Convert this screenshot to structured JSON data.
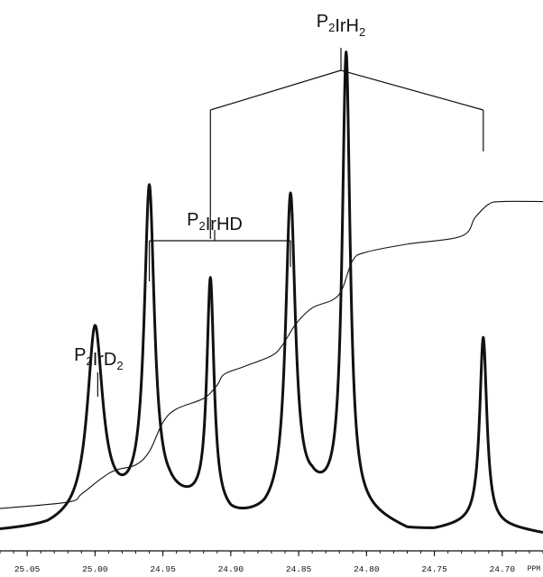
{
  "chart_data": {
    "type": "line",
    "title": "",
    "xlabel": "",
    "ylabel": "",
    "x_unit": "PPM",
    "x_reversed": true,
    "xlim": [
      25.07,
      24.67
    ],
    "ylim": [
      0,
      1
    ],
    "grid": false,
    "legend": "none",
    "x_ticks": [
      25.05,
      25.0,
      24.95,
      24.9,
      24.85,
      24.8,
      24.75,
      24.7
    ],
    "x_tick_labels": [
      "25.05",
      "25.00",
      "24.95",
      "24.90",
      "24.85",
      "24.80",
      "24.75",
      "24.70"
    ],
    "series": [
      {
        "role": "spectrum",
        "color": "#111111",
        "baseline": 0.035,
        "background": [
          [
            25.07,
            0.035
          ],
          [
            25.035,
            0.04
          ],
          [
            24.99,
            0.07
          ],
          [
            24.945,
            0.09
          ],
          [
            24.925,
            0.08
          ],
          [
            24.9,
            0.055
          ],
          [
            24.875,
            0.06
          ],
          [
            24.84,
            0.1
          ],
          [
            24.8,
            0.065
          ],
          [
            24.77,
            0.035
          ],
          [
            24.75,
            0.035
          ],
          [
            24.72,
            0.05
          ],
          [
            24.67,
            0.03
          ]
        ],
        "peaks": [
          {
            "x": 25.0,
            "height": 0.35,
            "width": 0.0068
          },
          {
            "x": 24.96,
            "height": 0.59,
            "width": 0.0045
          },
          {
            "x": 24.915,
            "height": 0.43,
            "width": 0.0032
          },
          {
            "x": 24.856,
            "height": 0.58,
            "width": 0.0043
          },
          {
            "x": 24.815,
            "height": 0.85,
            "width": 0.0035
          },
          {
            "x": 24.714,
            "height": 0.35,
            "width": 0.0032
          }
        ]
      },
      {
        "role": "integral",
        "color": "#111111",
        "points": [
          [
            25.07,
            0.078
          ],
          [
            25.02,
            0.09
          ],
          [
            25.01,
            0.105
          ],
          [
            24.995,
            0.135
          ],
          [
            24.985,
            0.15
          ],
          [
            24.97,
            0.16
          ],
          [
            24.96,
            0.185
          ],
          [
            24.95,
            0.24
          ],
          [
            24.94,
            0.265
          ],
          [
            24.92,
            0.285
          ],
          [
            24.91,
            0.31
          ],
          [
            24.905,
            0.33
          ],
          [
            24.89,
            0.345
          ],
          [
            24.87,
            0.365
          ],
          [
            24.862,
            0.385
          ],
          [
            24.852,
            0.425
          ],
          [
            24.84,
            0.455
          ],
          [
            24.825,
            0.47
          ],
          [
            24.818,
            0.49
          ],
          [
            24.81,
            0.545
          ],
          [
            24.8,
            0.56
          ],
          [
            24.77,
            0.575
          ],
          [
            24.73,
            0.59
          ],
          [
            24.72,
            0.625
          ],
          [
            24.71,
            0.65
          ],
          [
            24.7,
            0.655
          ],
          [
            24.67,
            0.655
          ]
        ]
      }
    ],
    "annotations": [
      {
        "name": "P2IrD2",
        "parts": [
          {
            "t": "P",
            "sub": false
          },
          {
            "t": "2",
            "sub": true
          },
          {
            "t": "IrD",
            "sub": false
          },
          {
            "t": "2",
            "sub": true
          }
        ],
        "lines": [
          24.998
        ]
      },
      {
        "name": "P2IrHD",
        "parts": [
          {
            "t": "P",
            "sub": false
          },
          {
            "t": "2",
            "sub": true
          },
          {
            "t": "IrHD",
            "sub": false
          }
        ],
        "lines": [
          24.96,
          24.856
        ]
      },
      {
        "name": "P2IrH2",
        "parts": [
          {
            "t": "P",
            "sub": false
          },
          {
            "t": "2",
            "sub": true
          },
          {
            "t": "IrH",
            "sub": false
          },
          {
            "t": "2",
            "sub": true
          }
        ],
        "lines": [
          24.915,
          24.714
        ]
      }
    ]
  }
}
